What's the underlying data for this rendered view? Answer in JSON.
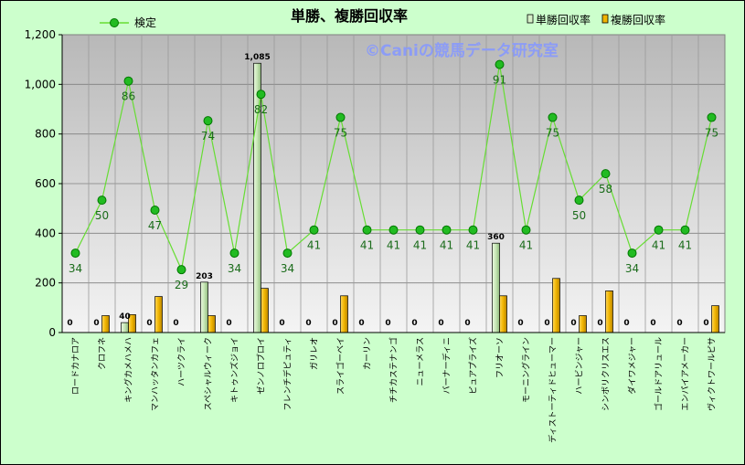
{
  "chart_data": {
    "type": "bar",
    "title": "単勝、複勝回収率",
    "watermark": "©Caniの競馬データ研究室",
    "categories": [
      "ロードカナロア",
      "クロフネ",
      "キングカメハメハ",
      "マンハッタンカフェ",
      "ハーツクライ",
      "スペシャルウィーク",
      "キトゥンズジョイ",
      "ゼンノロブロイ",
      "フレンチデピュティ",
      "ガリレオ",
      "スライゴーベイ",
      "カーリン",
      "チチカステナンゴ",
      "ニューメラス",
      "バーナーディニ",
      "ピュアプライズ",
      "フリオーソ",
      "モーニングライン",
      "ディストーティドヒューマー",
      "ハービンジャー",
      "シンボリクリスエス",
      "ダイワメジャー",
      "ゴールドアリュール",
      "エンパイアメーカー",
      "ヴィクトワールピサ"
    ],
    "series": [
      {
        "name": "単勝回収率",
        "type": "bar",
        "color": "#d6f0c8",
        "values": [
          0,
          0,
          40,
          0,
          0,
          203,
          0,
          1085,
          0,
          0,
          0,
          0,
          0,
          0,
          0,
          0,
          360,
          0,
          0,
          0,
          0,
          0,
          0,
          0,
          0
        ]
      },
      {
        "name": "複勝回収率",
        "type": "bar",
        "color": "#f0b400",
        "values": [
          0,
          68,
          72,
          145,
          0,
          68,
          0,
          178,
          0,
          0,
          148,
          0,
          0,
          0,
          0,
          0,
          148,
          0,
          218,
          68,
          168,
          0,
          0,
          0,
          108
        ]
      },
      {
        "name": "検定",
        "type": "line",
        "color": "#66dd33",
        "values": [
          34,
          50,
          86,
          47,
          29,
          74,
          34,
          82,
          34,
          41,
          75,
          41,
          41,
          41,
          41,
          41,
          91,
          41,
          75,
          50,
          58,
          34,
          41,
          41,
          75
        ]
      }
    ],
    "bar_data_labels": [
      "0",
      "0",
      "40",
      "0",
      "0",
      "203",
      "0",
      "1,085",
      "0",
      "0",
      "0",
      "0",
      "0",
      "0",
      "0",
      "0",
      "360",
      "0",
      "0",
      "0",
      "0",
      "0",
      "0",
      "0",
      "0"
    ],
    "yticks": [
      "0",
      "200",
      "400",
      "600",
      "800",
      "1,000",
      "1,200"
    ],
    "ylim": [
      0,
      1200
    ],
    "line_scale": {
      "min": 10,
      "max": 100
    },
    "legend": {
      "position": "top",
      "line_label": "検定",
      "bar1_label": "単勝回収率",
      "bar2_label": "複勝回収率"
    },
    "grid": true
  }
}
